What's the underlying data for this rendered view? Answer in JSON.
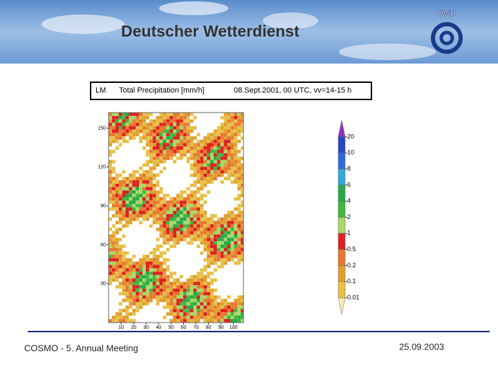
{
  "header": {
    "title": "Deutscher Wetterdienst",
    "logo": "DWD"
  },
  "map": {
    "model": "LM",
    "field": "Total Precipitation [mm/h]",
    "time": "08.Sept.2001, 00 UTC, vv=14-15 h",
    "xlim": [
      0,
      108
    ],
    "ylim": [
      0,
      162
    ],
    "xticks": [
      10,
      20,
      30,
      40,
      50,
      60,
      70,
      80,
      90,
      100
    ],
    "yticks": [
      30,
      60,
      90,
      120,
      150
    ]
  },
  "colorbar": {
    "levels": [
      0.01,
      0.1,
      0.2,
      0.5,
      1,
      2,
      4,
      6,
      8,
      10,
      20
    ],
    "colors": [
      "#f4ecb0",
      "#e8c048",
      "#e0a030",
      "#e87830",
      "#e02020",
      "#a8d868",
      "#40b840",
      "#28a848",
      "#30a8d8",
      "#3068d8",
      "#2848c0",
      "#9030c0"
    ]
  },
  "footer": {
    "event": "COSMO - 5. Annual Meeting",
    "date": "25.09.2003"
  }
}
